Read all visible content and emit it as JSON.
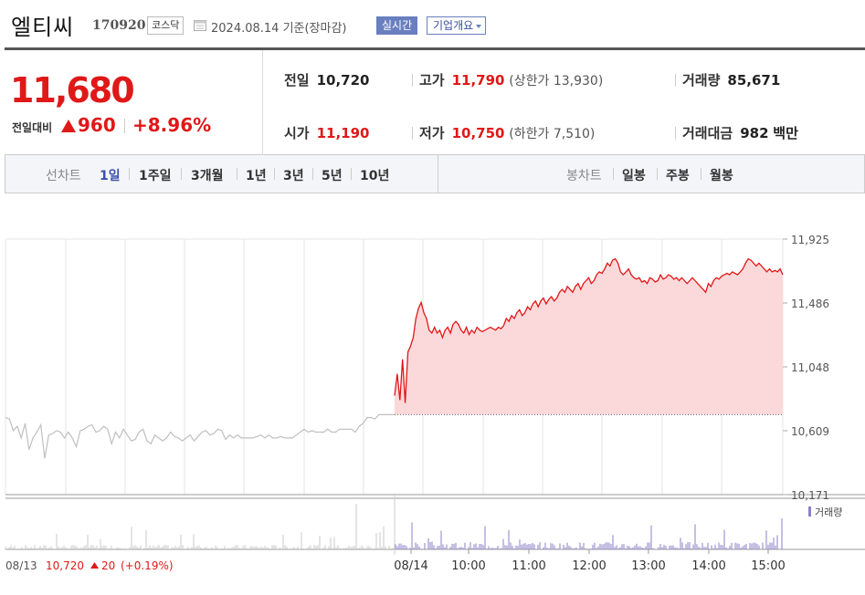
{
  "header": {
    "name": "엘티씨",
    "code": "170920",
    "market": "코스닥",
    "date": "2024.08.14 기준(장마감)",
    "realtime": "실시간",
    "overview": "기업개요"
  },
  "quote": {
    "price": "11,680",
    "change_label": "전일대비",
    "change": "960",
    "change_pct": "+8.96%",
    "prev_label": "전일",
    "prev": "10,720",
    "open_label": "시가",
    "open": "11,190",
    "high_label": "고가",
    "high": "11,790",
    "upper_limit": "(상한가 13,930)",
    "low_label": "저가",
    "low": "10,750",
    "lower_limit": "(하한가 7,510)",
    "volume_label": "거래량",
    "volume": "85,671",
    "amount_label": "거래대금",
    "amount": "982",
    "amount_unit": "백만",
    "up_color": "#e01818"
  },
  "tabs": {
    "line_label": "선차트",
    "periods": [
      "1일",
      "1주일",
      "3개월",
      "1년",
      "3년",
      "5년",
      "10년"
    ],
    "active": "1일",
    "candle_label": "봉차트",
    "candles": [
      "일봉",
      "주봉",
      "월봉"
    ]
  },
  "chart_data": {
    "type": "line",
    "y_ticks": [
      "11,925",
      "11,486",
      "11,048",
      "10,609",
      "10,171"
    ],
    "ylim": [
      10171,
      11925
    ],
    "prev_close": 10720,
    "x_labels": [
      "08/14",
      "10:00",
      "11:00",
      "12:00",
      "13:00",
      "14:00",
      "15:00"
    ],
    "volume_label": "거래량",
    "prev_day": {
      "date": "08/13",
      "close": "10,720",
      "change": "20",
      "change_pct": "(+0.19%)"
    },
    "prev_day_prices": [
      10700,
      10690,
      10610,
      10640,
      10560,
      10660,
      10480,
      10560,
      10600,
      10650,
      10420,
      10580,
      10590,
      10610,
      10600,
      10560,
      10600,
      10560,
      10500,
      10610,
      10620,
      10640,
      10650,
      10600,
      10610,
      10640,
      10620,
      10520,
      10600,
      10560,
      10620,
      10580,
      10540,
      10550,
      10600,
      10620,
      10540,
      10520,
      10580,
      10560,
      10540,
      10560,
      10600,
      10570,
      10560,
      10540,
      10560,
      10580,
      10540,
      10570,
      10600,
      10610,
      10580,
      10590,
      10620,
      10610,
      10550,
      10580,
      10560,
      10580,
      10560,
      10560,
      10560,
      10560,
      10570,
      10580,
      10560,
      10580,
      10560,
      10560,
      10570,
      10560,
      10560,
      10560,
      10580,
      10600,
      10620,
      10600,
      10610,
      10600,
      10600,
      10600,
      10620,
      10600,
      10600,
      10620,
      10620,
      10620,
      10620,
      10600,
      10640,
      10660,
      10700,
      10700,
      10690,
      10720,
      10720,
      10720,
      10720,
      10720
    ],
    "today_prices": [
      10850,
      11000,
      10820,
      11100,
      10800,
      11150,
      11190,
      11250,
      11380,
      11450,
      11490,
      11420,
      11380,
      11300,
      11280,
      11320,
      11280,
      11300,
      11250,
      11300,
      11320,
      11280,
      11340,
      11360,
      11340,
      11300,
      11280,
      11320,
      11270,
      11300,
      11280,
      11320,
      11300,
      11290,
      11300,
      11310,
      11320,
      11310,
      11300,
      11320,
      11310,
      11330,
      11380,
      11360,
      11400,
      11380,
      11420,
      11440,
      11400,
      11420,
      11460,
      11440,
      11480,
      11500,
      11460,
      11500,
      11520,
      11480,
      11510,
      11530,
      11500,
      11520,
      11560,
      11580,
      11560,
      11600,
      11580,
      11560,
      11600,
      11620,
      11580,
      11620,
      11640,
      11660,
      11620,
      11640,
      11680,
      11700,
      11690,
      11720,
      11760,
      11740,
      11780,
      11790,
      11760,
      11700,
      11680,
      11700,
      11720,
      11680,
      11660,
      11650,
      11660,
      11630,
      11640,
      11620,
      11660,
      11650,
      11630,
      11640,
      11680,
      11650,
      11660,
      11680,
      11670,
      11650,
      11660,
      11640,
      11660,
      11640,
      11620,
      11640,
      11660,
      11640,
      11620,
      11600,
      11580,
      11560,
      11620,
      11600,
      11640,
      11660,
      11650,
      11670,
      11680,
      11690,
      11680,
      11700,
      11690,
      11680,
      11700,
      11720,
      11760,
      11790,
      11780,
      11760,
      11740,
      11760,
      11740,
      11720,
      11700,
      11720,
      11700,
      11710,
      11700,
      11720,
      11680
    ]
  }
}
